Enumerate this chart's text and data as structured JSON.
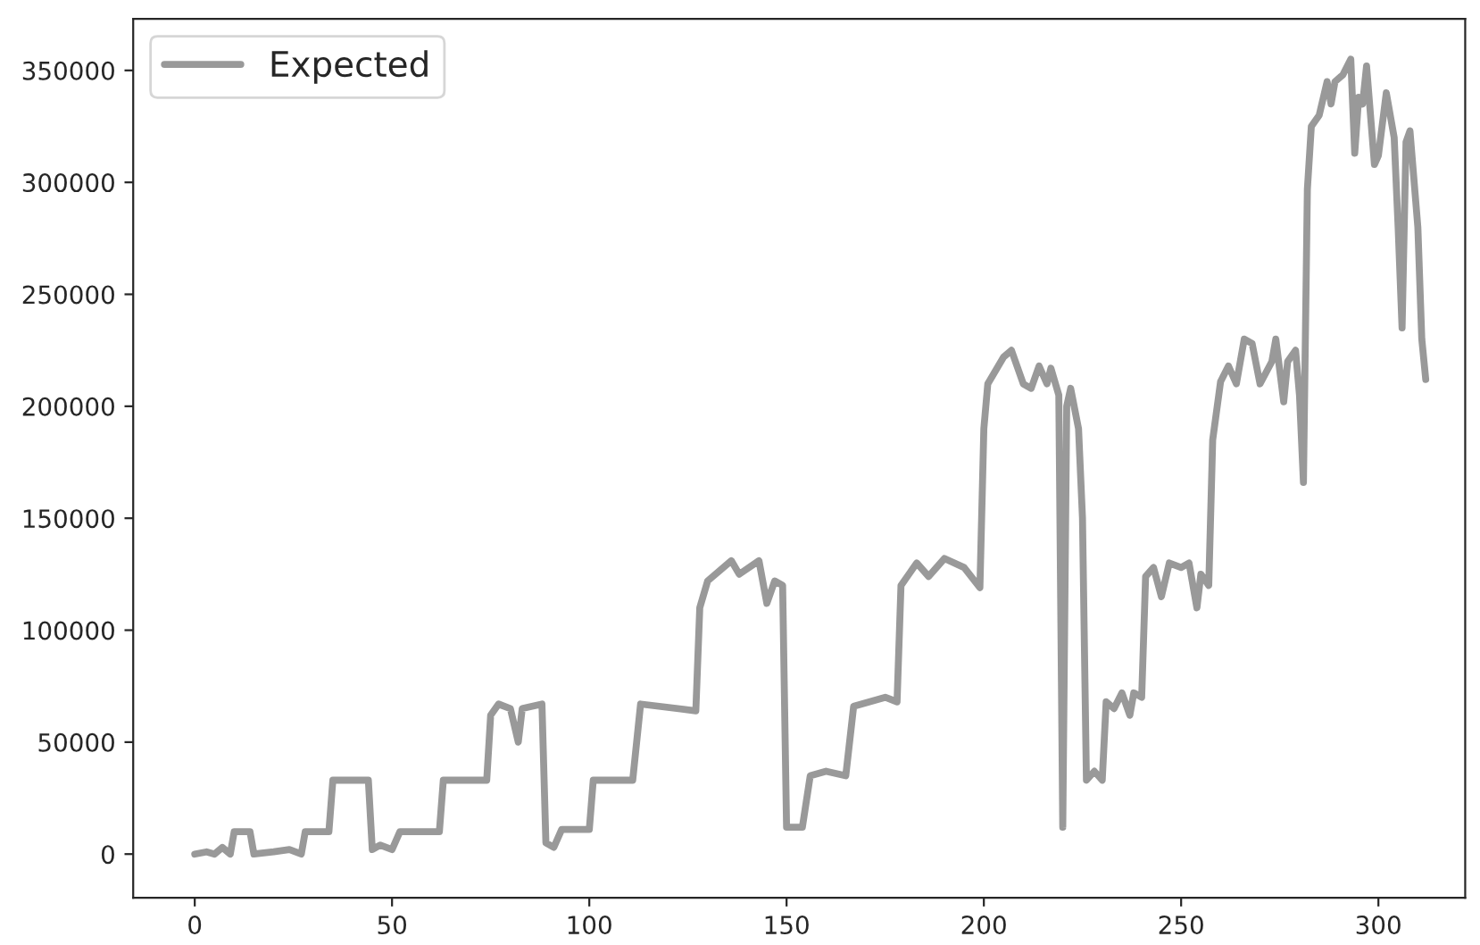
{
  "chart_data": {
    "type": "line",
    "legend": "top left",
    "grid": false,
    "xlim": [
      -15.6,
      322
    ],
    "ylim": [
      -19500,
      373000
    ],
    "xticks": [
      0,
      50,
      100,
      150,
      200,
      250,
      300
    ],
    "yticks": [
      0,
      50000,
      100000,
      150000,
      200000,
      250000,
      300000,
      350000
    ],
    "series": [
      {
        "name": "Expected",
        "color": "#999999",
        "x": [
          0,
          3,
          5,
          7,
          9,
          10,
          14,
          15,
          20,
          24,
          27,
          28,
          34,
          35,
          44,
          45,
          47,
          50,
          52,
          62,
          63,
          74,
          75,
          77,
          80,
          82,
          83,
          88,
          89,
          91,
          93,
          100,
          101,
          111,
          113,
          127,
          128,
          130,
          136,
          138,
          143,
          145,
          147,
          149,
          150,
          154,
          156,
          160,
          165,
          167,
          169,
          175,
          178,
          179,
          183,
          186,
          190,
          195,
          199,
          200,
          201,
          205,
          207,
          210,
          212,
          214,
          216,
          217,
          219,
          220,
          221,
          222,
          224,
          225,
          226,
          228,
          230,
          231,
          233,
          235,
          237,
          238,
          240,
          241,
          243,
          245,
          247,
          250,
          252,
          254,
          255,
          257,
          258,
          260,
          262,
          264,
          266,
          268,
          270,
          273,
          274,
          276,
          277,
          279,
          280,
          281,
          282,
          283,
          285,
          287,
          288,
          289,
          291,
          293,
          294,
          295,
          296,
          297,
          299,
          300,
          302,
          304,
          305,
          306,
          307,
          308,
          310,
          311,
          312
        ],
        "values": [
          0,
          1000,
          0,
          3000,
          0,
          10000,
          10000,
          0,
          1000,
          2000,
          0,
          10000,
          10000,
          33000,
          33000,
          2000,
          4000,
          2000,
          10000,
          10000,
          33000,
          33000,
          62000,
          67000,
          65000,
          50000,
          65000,
          67000,
          5000,
          3000,
          11000,
          11000,
          33000,
          33000,
          67000,
          64000,
          110000,
          122000,
          131000,
          125000,
          131000,
          112000,
          122000,
          120000,
          12000,
          12000,
          35000,
          37000,
          35000,
          66000,
          67000,
          70000,
          68000,
          120000,
          130000,
          124000,
          132000,
          128000,
          119000,
          190000,
          210000,
          222000,
          225000,
          210000,
          208000,
          218000,
          210000,
          217000,
          205000,
          12000,
          200000,
          208000,
          190000,
          150000,
          33000,
          37000,
          33000,
          68000,
          65000,
          72000,
          62000,
          72000,
          70000,
          124000,
          128000,
          115000,
          130000,
          128000,
          130000,
          110000,
          125000,
          120000,
          185000,
          211000,
          218000,
          210000,
          230000,
          228000,
          210000,
          220000,
          230000,
          202000,
          220000,
          225000,
          205000,
          166000,
          297000,
          325000,
          330000,
          345000,
          335000,
          345000,
          348000,
          355000,
          313000,
          338000,
          335000,
          352000,
          308000,
          312000,
          340000,
          320000,
          280000,
          235000,
          318000,
          323000,
          280000,
          230000,
          212000
        ]
      }
    ]
  }
}
